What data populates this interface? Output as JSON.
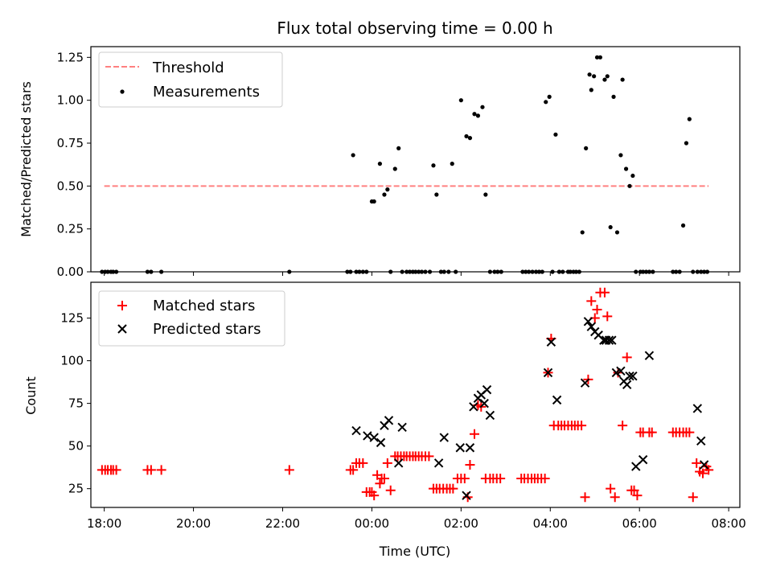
{
  "chart_data": [
    {
      "type": "scatter",
      "title": "Flux total observing time = 0.00 h",
      "xlabel": "",
      "ylabel": "Matched/Predicted stars",
      "xlim": [
        -6.3,
        8.25
      ],
      "ylim": [
        0,
        1.3125
      ],
      "yticks": [
        0.0,
        0.25,
        0.5,
        0.75,
        1.0,
        1.25
      ],
      "ytick_labels": [
        "0.00",
        "0.25",
        "0.50",
        "0.75",
        "1.00",
        "1.25"
      ],
      "legend_position": "upper-left",
      "series": [
        {
          "name": "Threshold",
          "kind": "line",
          "color": "#ff8080",
          "style": "dashed",
          "x": [
            -6.0,
            7.55
          ],
          "y": [
            0.5,
            0.5
          ]
        },
        {
          "name": "Measurements",
          "kind": "points",
          "color": "#000000",
          "marker": "dot",
          "x": [
            -6.05,
            -5.98,
            -5.92,
            -5.85,
            -5.8,
            -5.73,
            -5.03,
            -4.95,
            -4.72,
            -1.85,
            -0.55,
            -0.48,
            -0.42,
            -0.35,
            -0.28,
            -0.2,
            -0.12,
            0.0,
            0.05,
            0.18,
            0.28,
            0.35,
            0.42,
            0.52,
            0.6,
            0.68,
            0.78,
            0.85,
            0.92,
            0.98,
            1.05,
            1.12,
            1.2,
            1.3,
            1.38,
            1.45,
            1.55,
            1.62,
            1.72,
            1.8,
            1.88,
            2.0,
            2.12,
            2.2,
            2.3,
            2.38,
            2.48,
            2.55,
            2.65,
            2.75,
            2.82,
            2.9,
            3.38,
            3.45,
            3.52,
            3.6,
            3.68,
            3.75,
            3.82,
            3.9,
            3.98,
            4.05,
            4.12,
            4.2,
            4.28,
            4.4,
            4.45,
            4.52,
            4.58,
            4.65,
            4.72,
            4.8,
            4.88,
            4.92,
            4.98,
            5.05,
            5.12,
            5.22,
            5.28,
            5.35,
            5.42,
            5.5,
            5.58,
            5.62,
            5.7,
            5.78,
            5.85,
            5.92,
            6.02,
            6.08,
            6.15,
            6.22,
            6.3,
            6.75,
            6.82,
            6.9,
            6.98,
            7.05,
            7.12,
            7.2,
            7.3,
            7.38,
            7.45,
            7.52
          ],
          "y": [
            0,
            0,
            0,
            0,
            0,
            0,
            0,
            0,
            0,
            0,
            0,
            0,
            0.68,
            0,
            0,
            0,
            0,
            0.41,
            0.41,
            0.63,
            0.45,
            0.48,
            0,
            0.6,
            0.72,
            0,
            0,
            0,
            0,
            0,
            0,
            0,
            0,
            0,
            0.62,
            0.45,
            0,
            0,
            0,
            0.63,
            0,
            1.0,
            0.79,
            0.78,
            0.92,
            0.91,
            0.96,
            0.45,
            0,
            0,
            0,
            0,
            0,
            0,
            0,
            0,
            0,
            0,
            0,
            0.99,
            1.02,
            0,
            0.8,
            0,
            0,
            0,
            0,
            0,
            0,
            0,
            0.23,
            0.72,
            1.15,
            1.06,
            1.14,
            1.25,
            1.25,
            1.12,
            1.14,
            0.26,
            1.02,
            0.23,
            0.68,
            1.12,
            0.6,
            0.5,
            0.56,
            0,
            0,
            0,
            0,
            0,
            0,
            0,
            0,
            0,
            0.27,
            0.75,
            0.89,
            0,
            0,
            0,
            0,
            0
          ]
        }
      ]
    },
    {
      "type": "scatter",
      "title": "",
      "xlabel": "Time (UTC)",
      "ylabel": "Count",
      "xlim": [
        -6.3,
        8.25
      ],
      "ylim": [
        14,
        146
      ],
      "yticks": [
        25,
        50,
        75,
        100,
        125
      ],
      "ytick_labels": [
        "25",
        "50",
        "75",
        "100",
        "125"
      ],
      "xticks": [
        -6,
        -4,
        -2,
        0,
        2,
        4,
        6,
        8
      ],
      "xtick_labels": [
        "18:00",
        "20:00",
        "22:00",
        "00:00",
        "02:00",
        "04:00",
        "06:00",
        "08:00"
      ],
      "legend_position": "upper-left",
      "series": [
        {
          "name": "Matched stars",
          "kind": "points",
          "color": "#ff0000",
          "marker": "plus",
          "x": [
            -6.05,
            -5.98,
            -5.92,
            -5.85,
            -5.8,
            -5.73,
            -5.03,
            -4.95,
            -4.72,
            -1.85,
            -0.48,
            -0.42,
            -0.35,
            -0.28,
            -0.2,
            -0.12,
            -0.05,
            0.0,
            0.05,
            0.12,
            0.18,
            0.22,
            0.28,
            0.35,
            0.42,
            0.52,
            0.58,
            0.65,
            0.72,
            0.78,
            0.85,
            0.92,
            0.98,
            1.05,
            1.12,
            1.2,
            1.28,
            1.38,
            1.45,
            1.52,
            1.6,
            1.68,
            1.75,
            1.82,
            1.92,
            2.0,
            2.08,
            2.15,
            2.2,
            2.3,
            2.38,
            2.45,
            2.55,
            2.65,
            2.72,
            2.8,
            2.88,
            3.35,
            3.42,
            3.5,
            3.58,
            3.65,
            3.72,
            3.8,
            3.88,
            3.95,
            4.02,
            4.08,
            4.18,
            4.25,
            4.32,
            4.4,
            4.48,
            4.55,
            4.62,
            4.7,
            4.78,
            4.85,
            4.92,
            5.0,
            5.05,
            5.12,
            5.22,
            5.28,
            5.35,
            5.45,
            5.52,
            5.62,
            5.72,
            5.82,
            5.88,
            5.95,
            6.02,
            6.08,
            6.22,
            6.28,
            6.75,
            6.82,
            6.9,
            6.98,
            7.05,
            7.12,
            7.2,
            7.28,
            7.35,
            7.42,
            7.5,
            7.55
          ],
          "y": [
            36,
            36,
            36,
            36,
            36,
            36,
            36,
            36,
            36,
            36,
            36,
            36,
            40,
            40,
            40,
            23,
            23,
            23,
            21,
            33,
            28,
            31,
            31,
            40,
            24,
            44,
            44,
            44,
            44,
            44,
            44,
            44,
            44,
            44,
            44,
            44,
            44,
            25,
            25,
            25,
            25,
            25,
            25,
            25,
            31,
            31,
            31,
            20,
            39,
            57,
            74,
            73,
            31,
            31,
            31,
            31,
            31,
            31,
            31,
            31,
            31,
            31,
            31,
            31,
            31,
            93,
            113,
            62,
            62,
            62,
            62,
            62,
            62,
            62,
            62,
            62,
            20,
            89,
            135,
            125,
            130,
            140,
            140,
            126,
            25,
            20,
            93,
            62,
            102,
            24,
            24,
            21,
            58,
            58,
            58,
            58,
            58,
            58,
            58,
            58,
            58,
            58,
            20,
            40,
            35,
            34,
            38,
            36
          ]
        },
        {
          "name": "Predicted stars",
          "kind": "points",
          "color": "#000000",
          "marker": "x",
          "x": [
            -0.35,
            -0.1,
            0.05,
            0.2,
            0.28,
            0.38,
            0.6,
            0.68,
            1.5,
            1.62,
            1.98,
            2.12,
            2.2,
            2.28,
            2.38,
            2.45,
            2.52,
            2.58,
            2.65,
            3.95,
            4.02,
            4.15,
            4.78,
            4.85,
            4.92,
            5.0,
            5.08,
            5.2,
            5.25,
            5.32,
            5.38,
            5.48,
            5.58,
            5.65,
            5.72,
            5.78,
            5.85,
            5.92,
            6.08,
            6.22,
            7.3,
            7.38,
            7.45
          ],
          "y": [
            59,
            56,
            55,
            52,
            62,
            65,
            40,
            61,
            40,
            55,
            49,
            21,
            49,
            73,
            78,
            80,
            75,
            83,
            68,
            93,
            111,
            77,
            87,
            123,
            120,
            117,
            115,
            112,
            112,
            112,
            112,
            93,
            94,
            88,
            86,
            91,
            91,
            38,
            42,
            103,
            72,
            53,
            39
          ]
        }
      ]
    }
  ]
}
